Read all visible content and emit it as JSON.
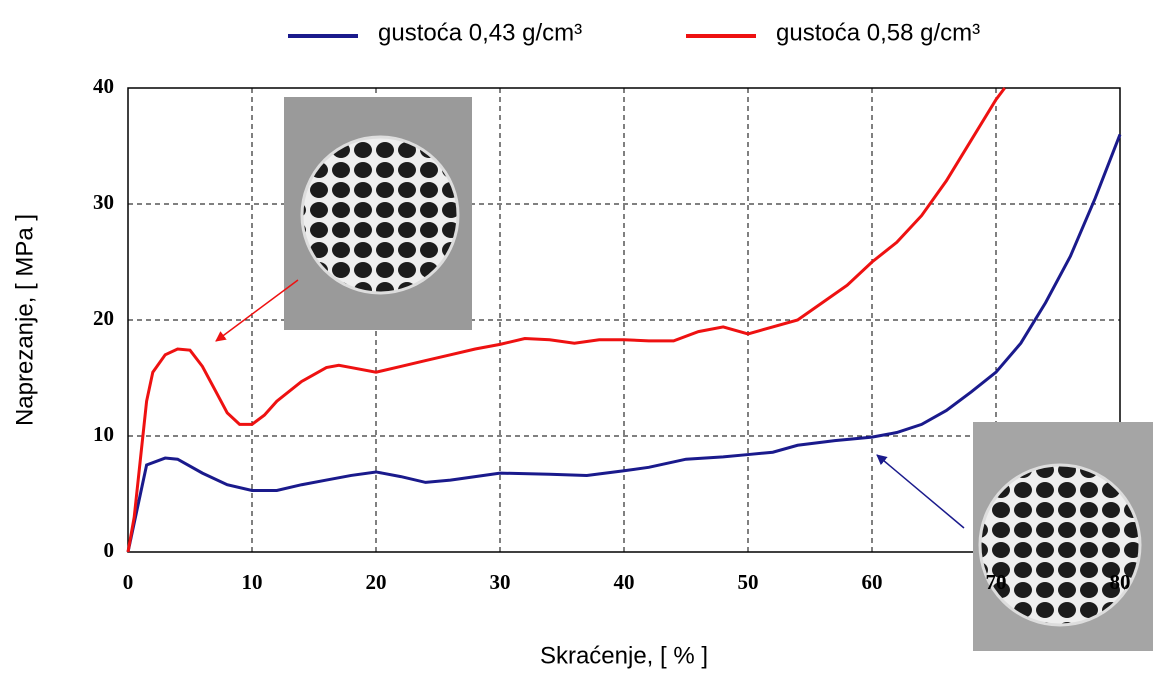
{
  "chart_data": {
    "type": "line",
    "x_label": "Skraćenje, [ % ]",
    "y_label": "Naprezanje, [ MPa ]",
    "xlim": [
      0,
      80
    ],
    "xticks": [
      0,
      10,
      20,
      30,
      40,
      50,
      60,
      70,
      80
    ],
    "ylim": [
      0,
      40
    ],
    "yticks": [
      0,
      10,
      20,
      30,
      40
    ],
    "grid": true,
    "series": [
      {
        "name": "gustoća 0,43 g/cm³",
        "color": "#1a1a8c",
        "x": [
          0,
          1,
          1.5,
          3,
          4,
          6,
          8,
          10,
          12,
          14,
          16,
          18,
          20,
          22,
          24,
          26,
          28,
          30,
          34,
          37,
          40,
          42,
          45,
          48,
          50,
          52,
          54,
          57,
          60,
          62,
          64,
          66,
          68,
          70,
          72,
          74,
          76,
          78,
          80
        ],
        "values": [
          0,
          5,
          7.5,
          8.1,
          8,
          6.8,
          5.8,
          5.3,
          5.3,
          5.8,
          6.2,
          6.6,
          6.9,
          6.5,
          6,
          6.2,
          6.5,
          6.8,
          6.7,
          6.6,
          7,
          7.3,
          8,
          8.2,
          8.4,
          8.6,
          9.2,
          9.6,
          9.9,
          10.3,
          11,
          12.2,
          13.8,
          15.5,
          18,
          21.5,
          25.5,
          30.5,
          36
        ]
      },
      {
        "name": "gustoća 0,58 g/cm³",
        "color": "#ee1111",
        "x": [
          0,
          0.5,
          1,
          1.5,
          2,
          3,
          4,
          5,
          6,
          7,
          8,
          9,
          10,
          11,
          12,
          14,
          16,
          17,
          18,
          20,
          22,
          24,
          26,
          28,
          30,
          32,
          34,
          36,
          38,
          40,
          42,
          44,
          46,
          48,
          50,
          51,
          54,
          56,
          58,
          60,
          62,
          64,
          66,
          68,
          70,
          70.7
        ],
        "values": [
          0,
          3,
          8,
          13,
          15.5,
          17,
          17.5,
          17.4,
          16,
          14,
          12,
          11,
          11,
          11.8,
          13,
          14.7,
          15.9,
          16.1,
          15.9,
          15.5,
          16,
          16.5,
          17,
          17.5,
          17.9,
          18.4,
          18.3,
          18,
          18.3,
          18.3,
          18.2,
          18.2,
          19,
          19.4,
          18.8,
          19.1,
          20,
          21.5,
          23,
          25,
          26.7,
          29,
          32,
          35.5,
          39,
          40
        ]
      }
    ]
  }
}
